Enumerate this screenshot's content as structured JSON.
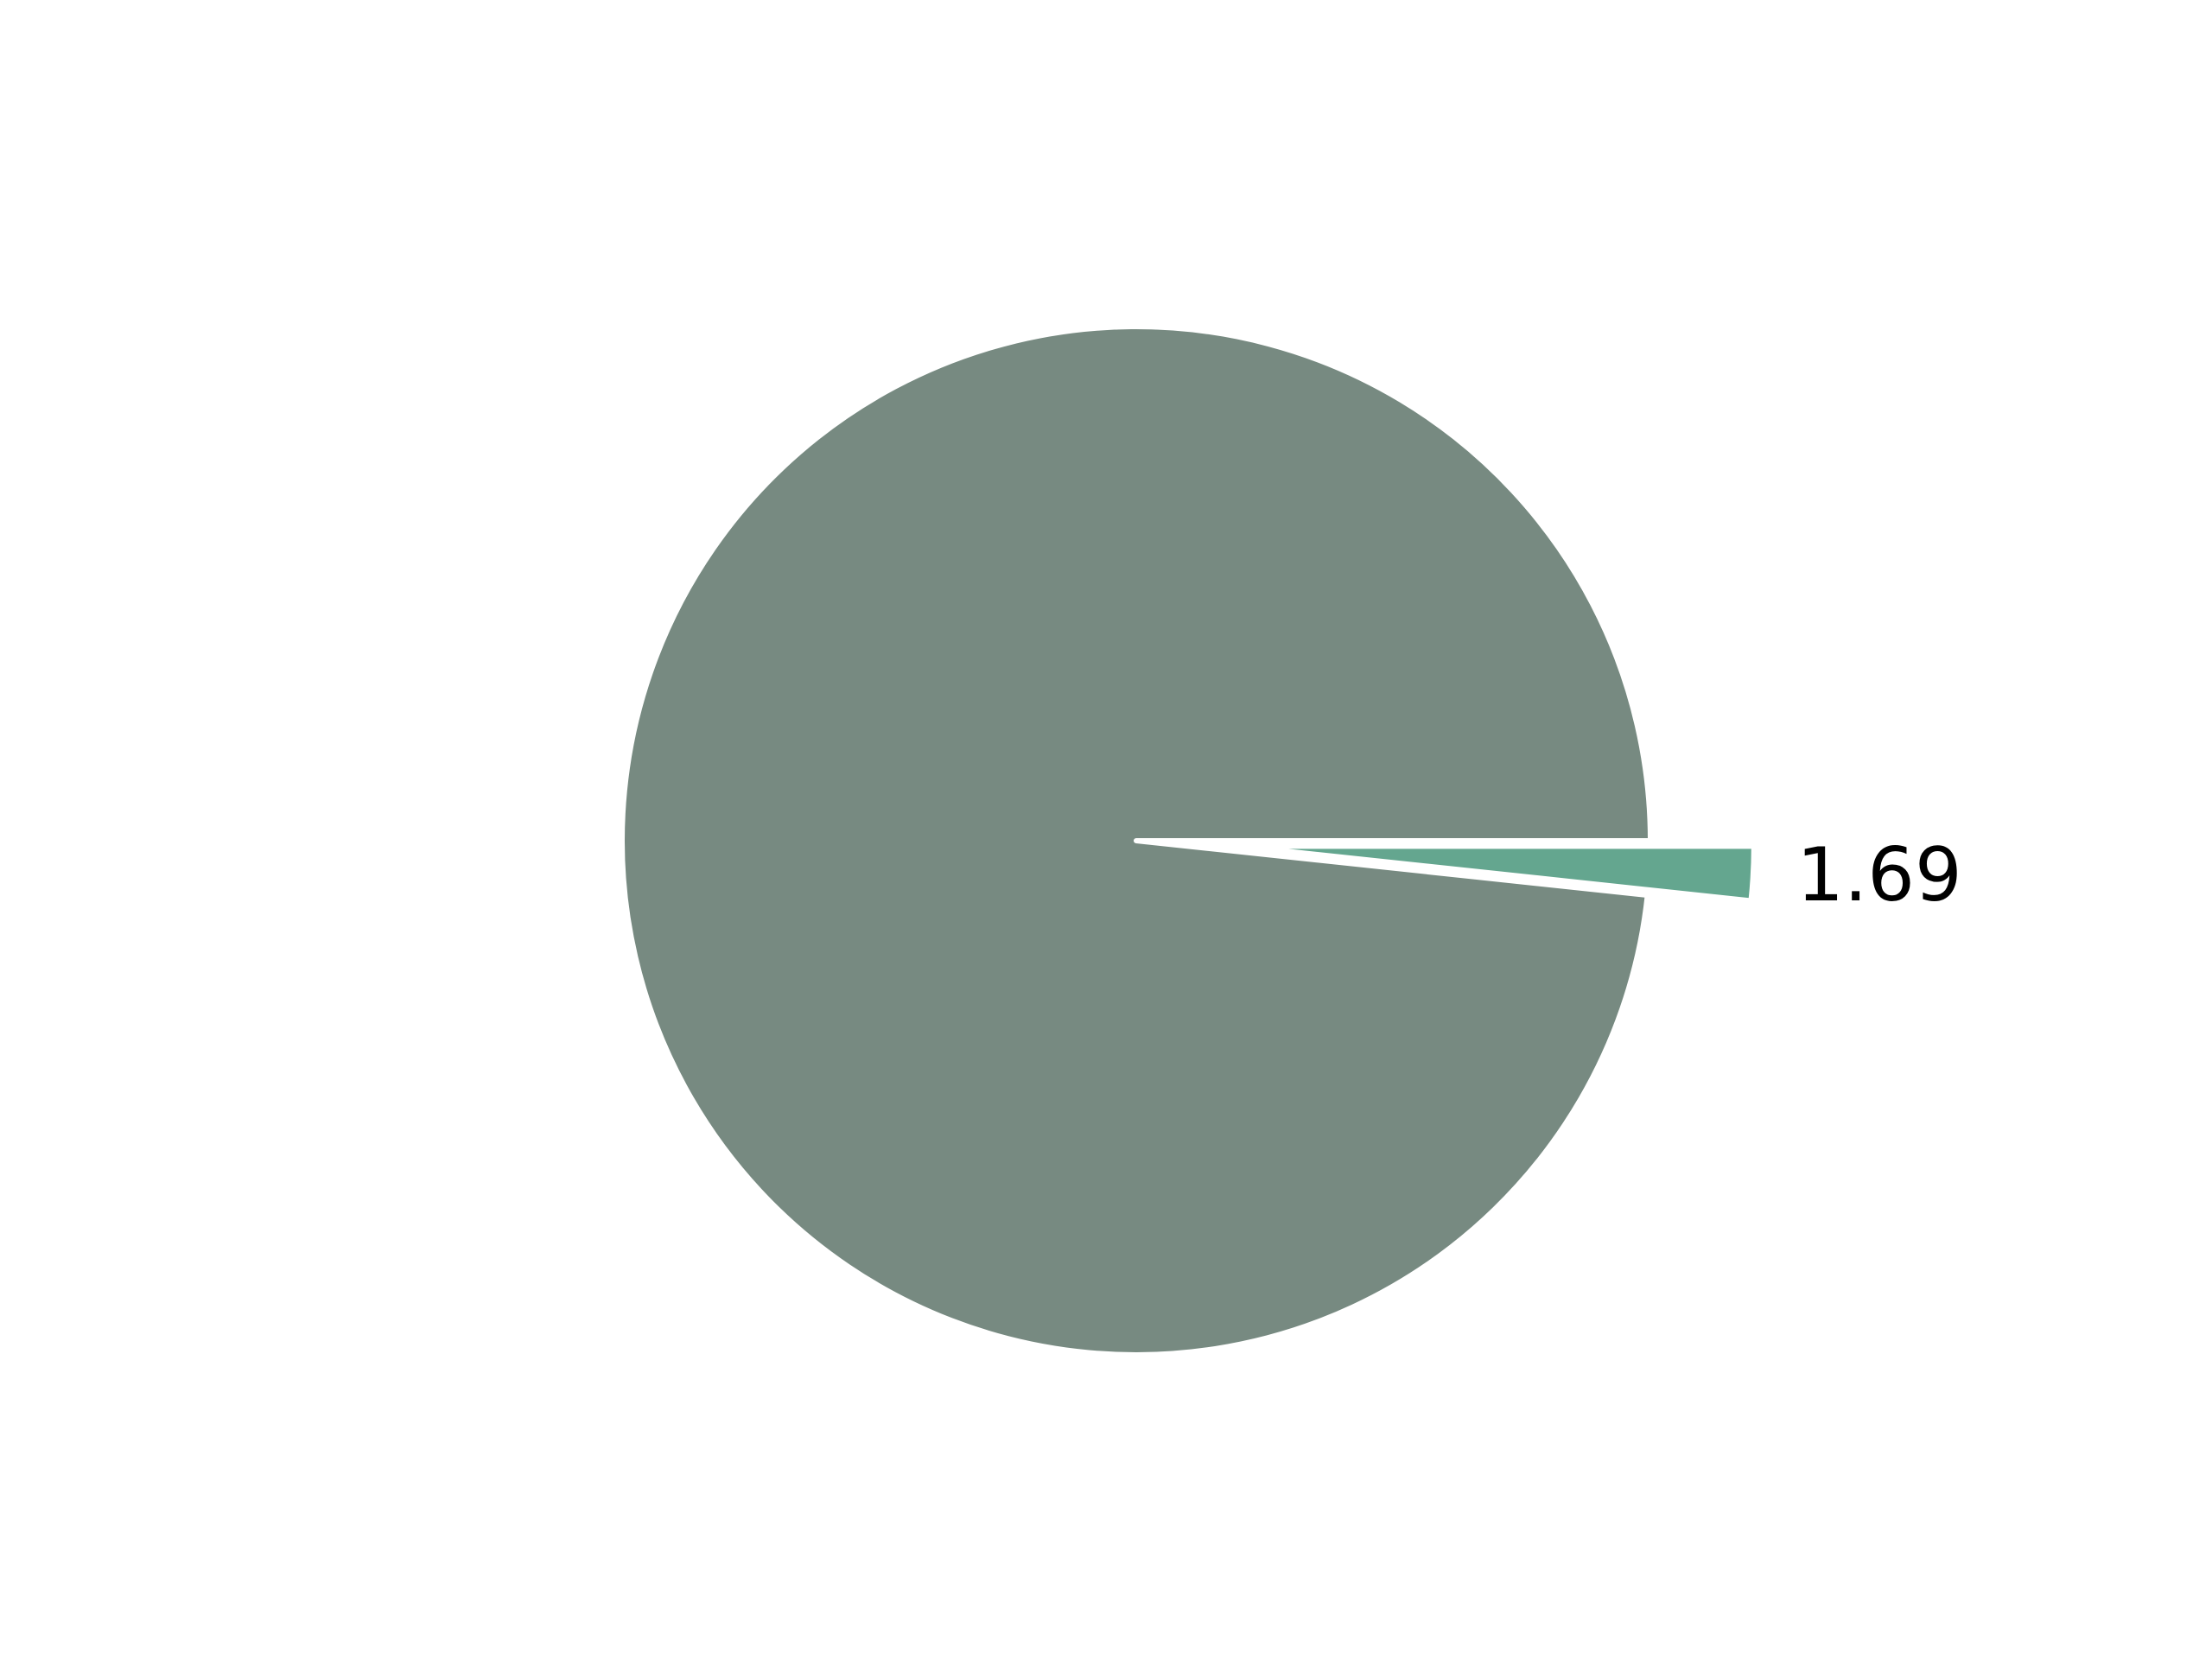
{
  "chart_data": {
    "type": "pie",
    "title": "",
    "slices": [
      {
        "value": 98.31,
        "color": "#778a81",
        "label": "",
        "exploded": false
      },
      {
        "value": 1.69,
        "color": "#64a68f",
        "label": "1.69",
        "exploded": true
      }
    ],
    "start_angle_deg": 0,
    "direction": "counterclockwise",
    "legend": "none"
  }
}
